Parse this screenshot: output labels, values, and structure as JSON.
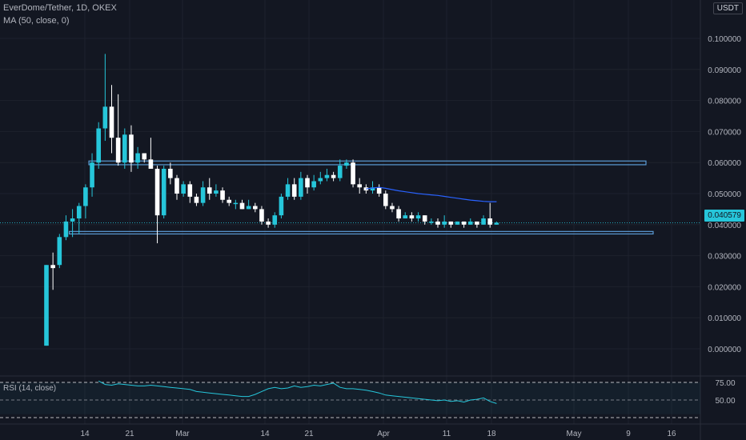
{
  "header": {
    "symbol_line": "EverDome/Tether, 1D, OKEX",
    "ma_line": "MA (50, close, 0)",
    "unit": "USDT"
  },
  "current_price_label": "0.040579",
  "rsi": {
    "label": "RSI (14, close)",
    "ticks": [
      "75.00",
      "50.00"
    ]
  },
  "colors": {
    "background": "#131722",
    "up_candle": "#26c6da",
    "down_candle": "#ffffff",
    "ma_line": "#2962ff",
    "zone_box": "#5b9bd5",
    "rsi_line": "#26c6da",
    "grid": "#1e222d",
    "axis_text": "#b2b5be"
  },
  "chart_data": {
    "type": "candlestick",
    "title": "EverDome/Tether, 1D, OKEX",
    "ylim": [
      -0.002,
      0.102
    ],
    "y_ticks": [
      "0.000000",
      "0.010000",
      "0.020000",
      "0.030000",
      "0.040000",
      "0.050000",
      "0.060000",
      "0.070000",
      "0.080000",
      "0.090000",
      "0.100000"
    ],
    "x_ticks": [
      "14",
      "21",
      "Mar",
      "14",
      "21",
      "Apr",
      "11",
      "18",
      "May",
      "9",
      "16"
    ],
    "candles": [
      [
        0.001,
        0.027,
        0.001,
        0.027
      ],
      [
        0.027,
        0.026,
        0.019,
        0.031
      ],
      [
        0.027,
        0.036,
        0.026,
        0.037
      ],
      [
        0.036,
        0.041,
        0.035,
        0.043
      ],
      [
        0.041,
        0.042,
        0.036,
        0.045
      ],
      [
        0.042,
        0.046,
        0.037,
        0.047
      ],
      [
        0.046,
        0.052,
        0.042,
        0.053
      ],
      [
        0.052,
        0.06,
        0.049,
        0.063
      ],
      [
        0.06,
        0.071,
        0.058,
        0.073
      ],
      [
        0.071,
        0.078,
        0.067,
        0.095
      ],
      [
        0.078,
        0.068,
        0.063,
        0.085
      ],
      [
        0.068,
        0.06,
        0.059,
        0.082
      ],
      [
        0.06,
        0.069,
        0.058,
        0.071
      ],
      [
        0.069,
        0.06,
        0.057,
        0.072
      ],
      [
        0.06,
        0.063,
        0.058,
        0.065
      ],
      [
        0.063,
        0.061,
        0.06,
        0.063
      ],
      [
        0.061,
        0.058,
        0.058,
        0.068
      ],
      [
        0.058,
        0.043,
        0.034,
        0.059
      ],
      [
        0.043,
        0.058,
        0.042,
        0.059
      ],
      [
        0.058,
        0.055,
        0.053,
        0.06
      ],
      [
        0.055,
        0.05,
        0.048,
        0.056
      ],
      [
        0.05,
        0.053,
        0.049,
        0.054
      ],
      [
        0.053,
        0.049,
        0.047,
        0.054
      ],
      [
        0.049,
        0.047,
        0.046,
        0.05
      ],
      [
        0.047,
        0.052,
        0.046,
        0.054
      ],
      [
        0.052,
        0.05,
        0.048,
        0.055
      ],
      [
        0.05,
        0.051,
        0.049,
        0.053
      ],
      [
        0.051,
        0.048,
        0.047,
        0.052
      ],
      [
        0.048,
        0.047,
        0.046,
        0.049
      ],
      [
        0.047,
        0.047,
        0.045,
        0.048
      ],
      [
        0.047,
        0.045,
        0.045,
        0.048
      ],
      [
        0.045,
        0.046,
        0.045,
        0.048
      ],
      [
        0.046,
        0.045,
        0.044,
        0.047
      ],
      [
        0.045,
        0.041,
        0.04,
        0.046
      ],
      [
        0.041,
        0.04,
        0.039,
        0.042
      ],
      [
        0.04,
        0.043,
        0.039,
        0.044
      ],
      [
        0.043,
        0.049,
        0.042,
        0.05
      ],
      [
        0.049,
        0.053,
        0.048,
        0.055
      ],
      [
        0.053,
        0.049,
        0.048,
        0.055
      ],
      [
        0.049,
        0.055,
        0.048,
        0.057
      ],
      [
        0.055,
        0.052,
        0.05,
        0.056
      ],
      [
        0.052,
        0.054,
        0.051,
        0.056
      ],
      [
        0.054,
        0.055,
        0.053,
        0.057
      ],
      [
        0.055,
        0.056,
        0.054,
        0.058
      ],
      [
        0.056,
        0.055,
        0.054,
        0.057
      ],
      [
        0.055,
        0.059,
        0.054,
        0.061
      ],
      [
        0.059,
        0.06,
        0.058,
        0.061
      ],
      [
        0.06,
        0.053,
        0.052,
        0.061
      ],
      [
        0.053,
        0.052,
        0.05,
        0.055
      ],
      [
        0.052,
        0.051,
        0.05,
        0.053
      ],
      [
        0.051,
        0.052,
        0.05,
        0.054
      ],
      [
        0.052,
        0.05,
        0.049,
        0.053
      ],
      [
        0.05,
        0.046,
        0.045,
        0.051
      ],
      [
        0.046,
        0.045,
        0.044,
        0.047
      ],
      [
        0.045,
        0.042,
        0.041,
        0.046
      ],
      [
        0.042,
        0.043,
        0.042,
        0.044
      ],
      [
        0.043,
        0.042,
        0.041,
        0.044
      ],
      [
        0.042,
        0.043,
        0.041,
        0.044
      ],
      [
        0.043,
        0.041,
        0.04,
        0.043
      ],
      [
        0.041,
        0.041,
        0.04,
        0.042
      ],
      [
        0.041,
        0.04,
        0.039,
        0.042
      ],
      [
        0.04,
        0.041,
        0.039,
        0.043
      ],
      [
        0.041,
        0.04,
        0.039,
        0.041
      ],
      [
        0.04,
        0.041,
        0.04,
        0.041
      ],
      [
        0.041,
        0.04,
        0.039,
        0.041
      ],
      [
        0.04,
        0.041,
        0.04,
        0.042
      ],
      [
        0.041,
        0.04,
        0.039,
        0.041
      ],
      [
        0.04,
        0.042,
        0.04,
        0.043
      ],
      [
        0.042,
        0.04,
        0.039,
        0.047
      ],
      [
        0.04,
        0.0406,
        0.04,
        0.041
      ]
    ],
    "ma50_start_index": 49,
    "ma50": [
      0.0515,
      0.0518,
      0.052,
      0.0517,
      0.0513,
      0.0509,
      0.0506,
      0.0503,
      0.05,
      0.0498,
      0.0496,
      0.0494,
      0.0491,
      0.0488,
      0.0485,
      0.0482,
      0.0479,
      0.0477,
      0.0475,
      0.0474,
      0.0474
    ],
    "zones": [
      {
        "y_top": 0.0605,
        "y_bottom": 0.0593,
        "start_index": 7,
        "end": "mid-May"
      },
      {
        "y_top": 0.0378,
        "y_bottom": 0.037,
        "start_index": 4,
        "end": "mid-May"
      }
    ],
    "rsi_values": [
      77,
      72,
      71,
      73,
      72,
      71,
      70,
      70,
      71,
      70,
      69,
      68,
      67,
      66,
      65,
      62,
      61,
      60,
      59,
      58,
      57,
      56,
      55,
      55,
      58,
      62,
      66,
      68,
      66,
      67,
      70,
      68,
      69,
      71,
      70,
      72,
      74,
      68,
      66,
      66,
      65,
      64,
      62,
      60,
      57,
      56,
      55,
      54,
      53,
      52,
      51,
      50,
      49,
      50,
      48,
      49,
      47,
      50,
      51,
      53,
      48,
      45
    ]
  }
}
